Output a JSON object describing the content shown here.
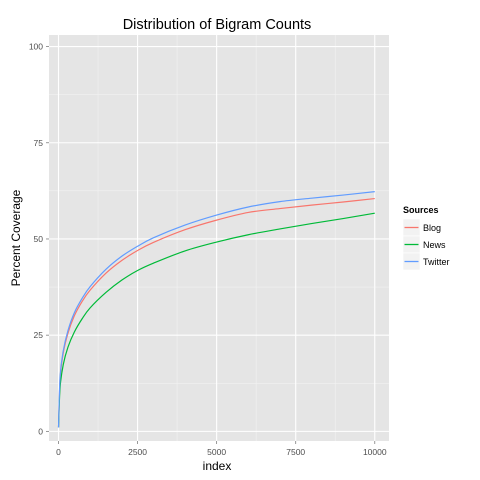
{
  "chart_data": {
    "type": "line",
    "title": "Distribution of Bigram Counts",
    "xlabel": "index",
    "ylabel": "Percent Coverage",
    "xlim": [
      -300,
      10450
    ],
    "ylim": [
      -2.5,
      103
    ],
    "xticks": [
      0,
      2500,
      5000,
      7500,
      10000
    ],
    "yticks": [
      0,
      25,
      50,
      75,
      100
    ],
    "grid": true,
    "background": "#e5e5e5",
    "legend": {
      "title": "Sources",
      "position": "right"
    },
    "series": [
      {
        "name": "Blog",
        "color": "#f8766d",
        "x": [
          1,
          50,
          150,
          300,
          500,
          750,
          1000,
          1500,
          2000,
          2500,
          3000,
          4000,
          5000,
          6000,
          7000,
          8000,
          9000,
          10000
        ],
        "y": [
          1,
          13.5,
          20.3,
          25.5,
          30.0,
          33.8,
          36.7,
          41.1,
          44.4,
          47.0,
          49.1,
          52.4,
          54.9,
          56.9,
          57.9,
          58.8,
          59.6,
          60.5
        ]
      },
      {
        "name": "News",
        "color": "#00ba38",
        "x": [
          1,
          50,
          150,
          300,
          500,
          750,
          1000,
          1500,
          2000,
          2500,
          3000,
          4000,
          5000,
          6000,
          7000,
          8000,
          9000,
          10000
        ],
        "y": [
          1,
          11.4,
          17.3,
          21.9,
          25.8,
          29.3,
          32.1,
          36.1,
          39.3,
          41.8,
          43.7,
          46.9,
          49.2,
          51.1,
          52.6,
          54.0,
          55.3,
          56.7
        ]
      },
      {
        "name": "Twitter",
        "color": "#619cff",
        "x": [
          1,
          50,
          150,
          300,
          500,
          750,
          1000,
          1500,
          2000,
          2500,
          3000,
          4000,
          5000,
          6000,
          7000,
          8000,
          9000,
          10000
        ],
        "y": [
          1,
          14.2,
          20.9,
          26.2,
          30.8,
          34.6,
          37.6,
          42.1,
          45.5,
          48.1,
          50.3,
          53.6,
          56.2,
          58.3,
          59.7,
          60.6,
          61.4,
          62.3
        ]
      }
    ]
  }
}
